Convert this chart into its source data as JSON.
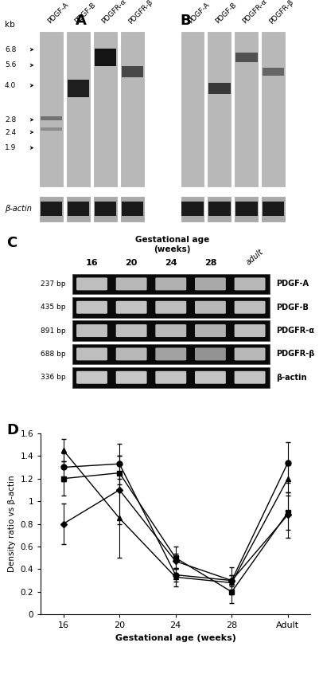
{
  "northern_labels": [
    "PDGF-A",
    "PDGF-B",
    "PDGFR-α",
    "PDGFR-β"
  ],
  "kb_labels": [
    "6.8",
    "5.6",
    "4.0",
    "2.8",
    "2.4",
    "1.9"
  ],
  "beta_actin_label": "β-actin",
  "pcr_labels": [
    "237 bp",
    "435 bp",
    "891 bp",
    "688 bp",
    "336 bp"
  ],
  "pcr_gene_labels": [
    "PDGF-A",
    "PDGF-B",
    "PDGFR-α",
    "PDGFR-β",
    "β-actin"
  ],
  "pcr_timepoints": [
    "16",
    "20",
    "24",
    "28",
    "adult"
  ],
  "xticklabels": [
    "16",
    "20",
    "24",
    "28",
    "Adult"
  ],
  "xlabel": "Gestational age (weeks)",
  "ylabel": "Density ratio vs β-actin",
  "ylim": [
    0,
    1.6
  ],
  "yticks": [
    0,
    0.2,
    0.4,
    0.6,
    0.8,
    1.0,
    1.2,
    1.4,
    1.6
  ],
  "series_circle": [
    1.3,
    1.33,
    0.35,
    0.3,
    1.34
  ],
  "series_circle_err": [
    0.12,
    0.18,
    0.06,
    0.05,
    0.18
  ],
  "series_square": [
    1.2,
    1.25,
    0.5,
    0.2,
    0.9
  ],
  "series_square_err": [
    0.15,
    0.15,
    0.1,
    0.1,
    0.15
  ],
  "series_triangle": [
    1.45,
    0.85,
    0.33,
    0.28,
    1.2
  ],
  "series_triangle_err": [
    0.1,
    0.35,
    0.08,
    0.07,
    0.12
  ],
  "series_diamond": [
    0.8,
    1.1,
    0.47,
    0.3,
    0.88
  ],
  "series_diamond_err": [
    0.18,
    0.3,
    0.07,
    0.12,
    0.2
  ],
  "bg_color": "#ffffff",
  "panel_A_bands": [
    [
      [
        0.44,
        0.055,
        0.55
      ],
      [
        0.37,
        0.045,
        0.45
      ]
    ],
    [
      [
        0.63,
        0.22,
        0.88
      ]
    ],
    [
      [
        0.83,
        0.22,
        0.92
      ]
    ],
    [
      [
        0.74,
        0.14,
        0.72
      ]
    ]
  ],
  "panel_B_bands": [
    [],
    [
      [
        0.63,
        0.14,
        0.78
      ]
    ],
    [
      [
        0.83,
        0.12,
        0.68
      ]
    ],
    [
      [
        0.74,
        0.1,
        0.6
      ]
    ]
  ]
}
